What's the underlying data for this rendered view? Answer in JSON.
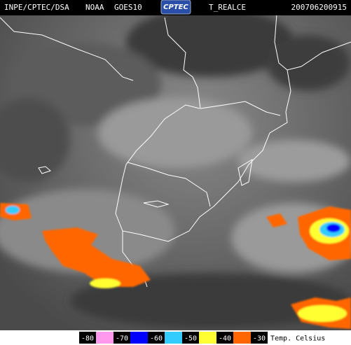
{
  "header": {
    "source": "INPE/CPTEC/DSA",
    "agency": "NOAA",
    "satellite": "GOES10",
    "logo": "CPTEC",
    "product": "T_REALCE",
    "timestamp": "200706200915"
  },
  "legend": {
    "stops": [
      -80,
      -70,
      -60,
      -50,
      -40,
      -30
    ],
    "colors": [
      "#ff99ee",
      "#0000ff",
      "#33ccff",
      "#ffff33",
      "#ff6600"
    ],
    "unit_label": "Temp. Celsius"
  }
}
